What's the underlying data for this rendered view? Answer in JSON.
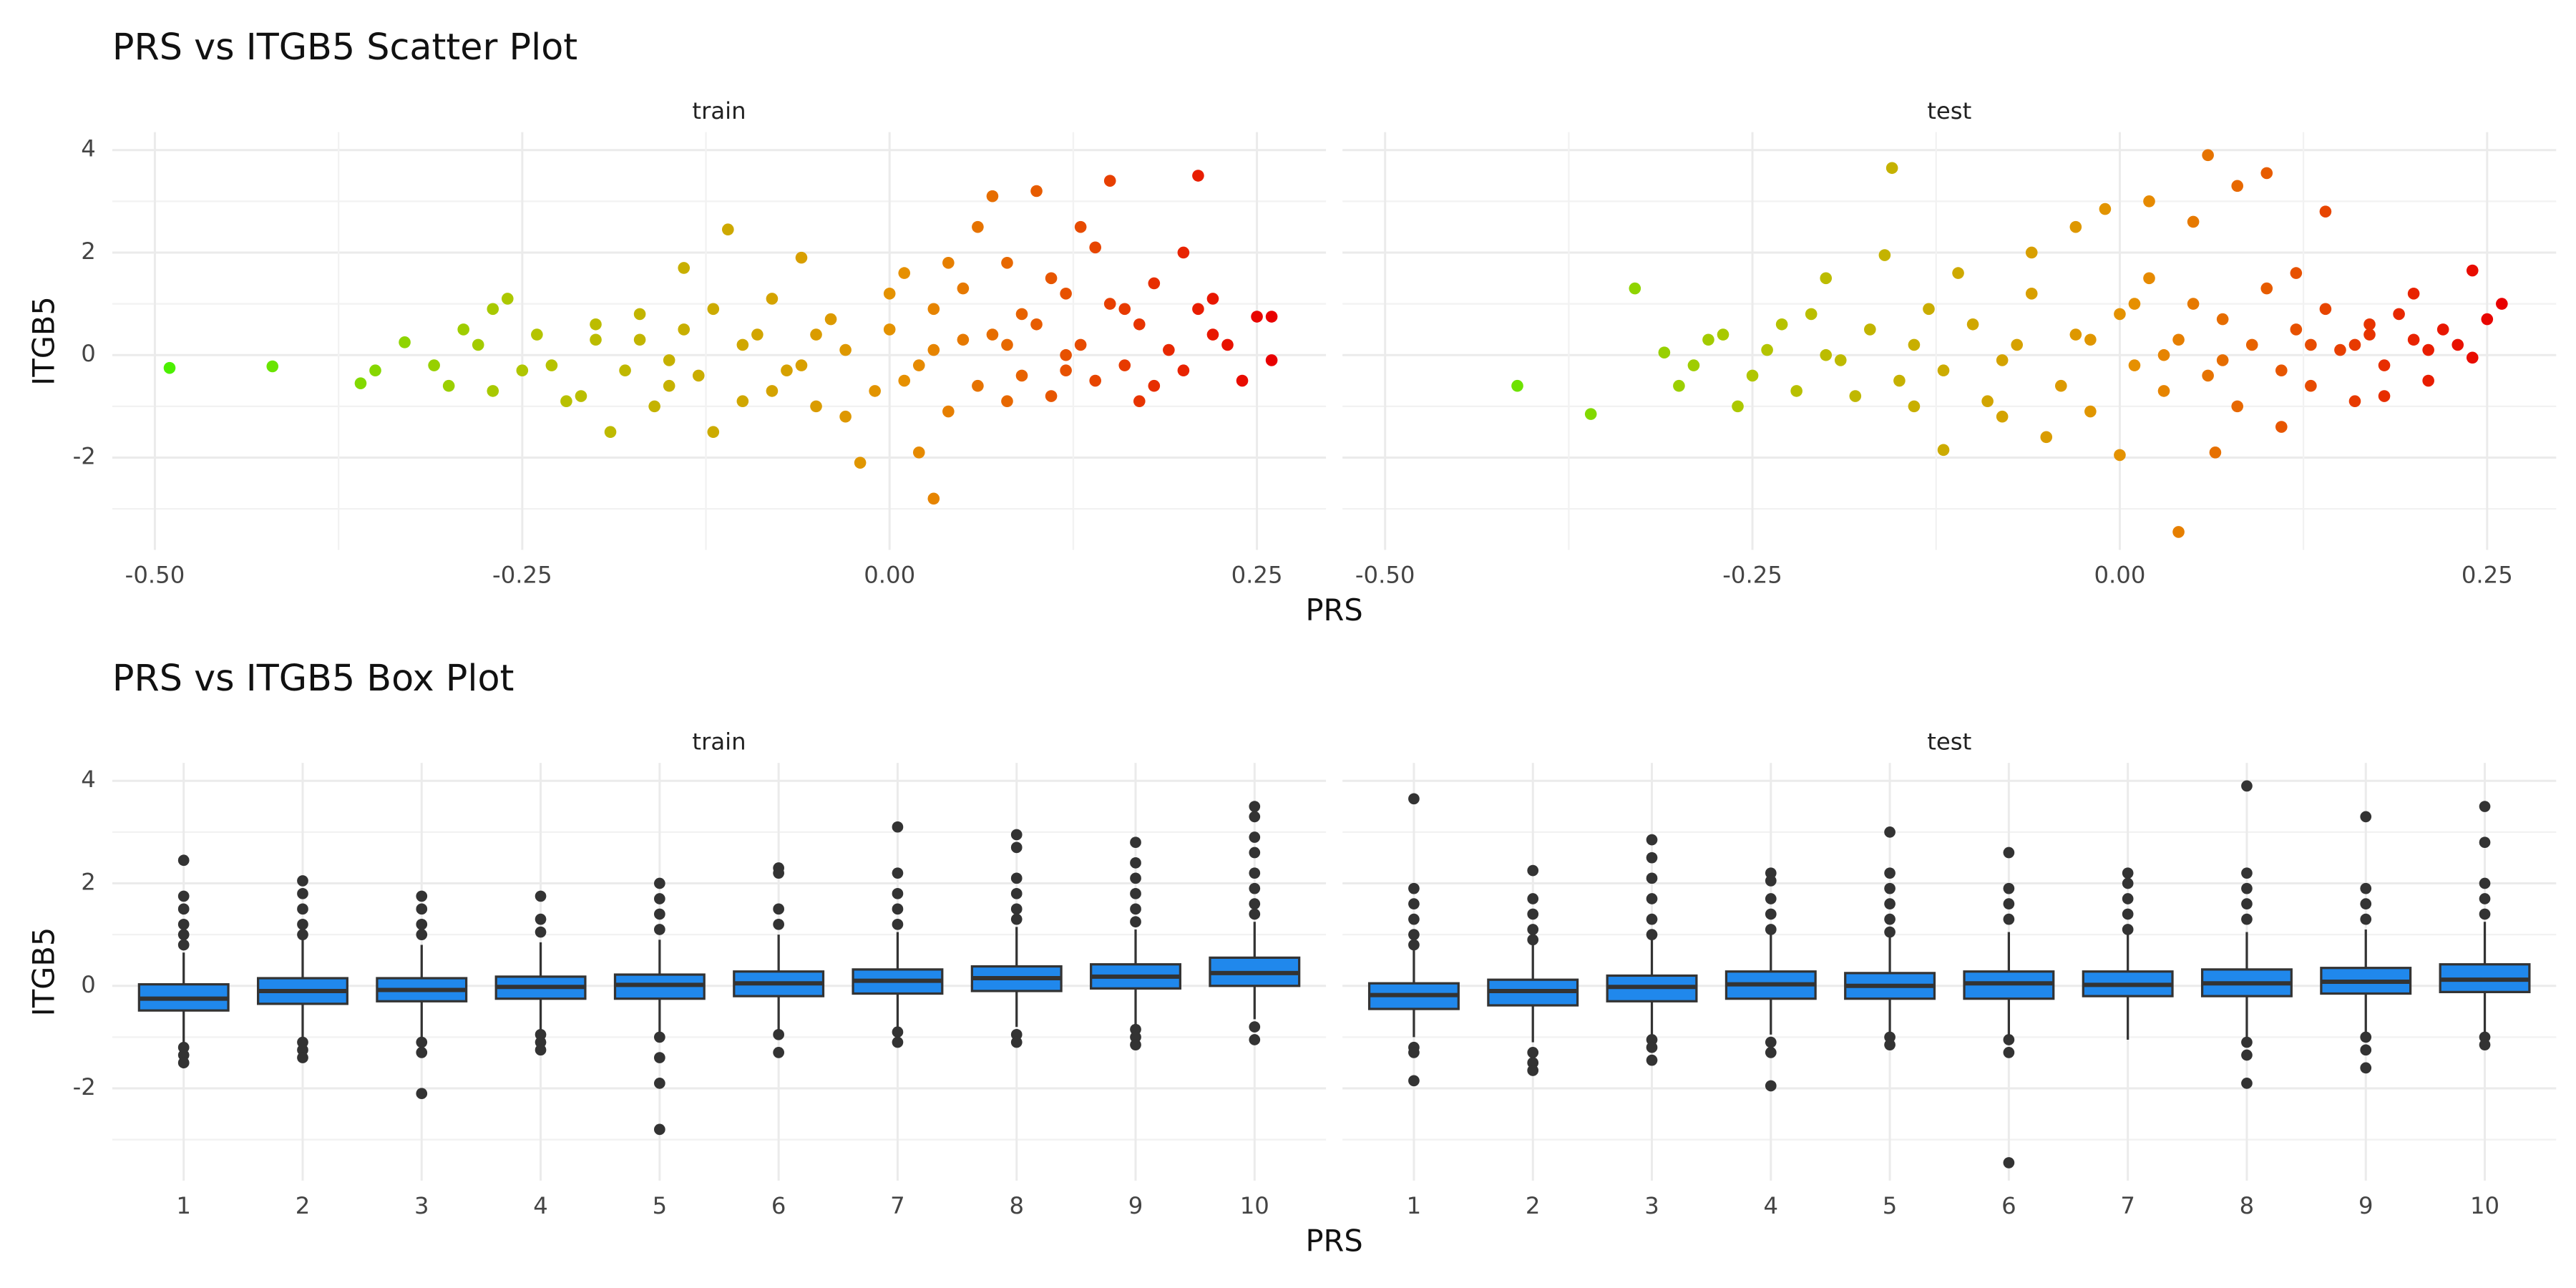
{
  "chart_data": [
    {
      "type": "scatter",
      "title": "PRS vs ITGB5 Scatter Plot",
      "x_label": "PRS",
      "y_label": "ITGB5",
      "xlim": [
        -0.529,
        0.297
      ],
      "xticks": [
        {
          "value": -0.5,
          "label": "-0.50"
        },
        {
          "value": -0.25,
          "label": "-0.25"
        },
        {
          "value": 0,
          "label": "0.00"
        },
        {
          "value": 0.25,
          "label": "0.25"
        }
      ],
      "ylim": [
        -3.8,
        4.35
      ],
      "yticks": [
        -2,
        0,
        2,
        4
      ],
      "grid": true,
      "color_scale": [
        "#4cf000",
        "#b4c400",
        "#e69000",
        "#e80000"
      ],
      "facets": [
        {
          "name": "train",
          "x": [
            -0.49,
            -0.42,
            -0.36,
            -0.35,
            -0.33,
            -0.3,
            -0.29,
            -0.27,
            -0.26,
            -0.25,
            -0.22,
            -0.2,
            -0.19,
            -0.17,
            -0.15,
            -0.14,
            -0.12,
            -0.11,
            -0.1,
            -0.08,
            -0.06,
            -0.05,
            -0.03,
            -0.02,
            0.0,
            0.01,
            0.02,
            0.03,
            0.04,
            0.05,
            0.06,
            0.07,
            0.08,
            0.09,
            0.1,
            0.11,
            0.12,
            0.13,
            0.15,
            0.16,
            0.18,
            0.2,
            0.21,
            0.22,
            0.24,
            0.25,
            0.26,
            0.26,
            -0.31,
            -0.28,
            -0.27,
            -0.24,
            -0.23,
            -0.21,
            -0.2,
            -0.18,
            -0.17,
            -0.16,
            -0.14,
            -0.13,
            -0.12,
            -0.1,
            -0.09,
            -0.08,
            -0.07,
            -0.05,
            -0.04,
            -0.03,
            -0.01,
            0.0,
            0.01,
            0.02,
            0.03,
            0.04,
            0.05,
            0.06,
            0.07,
            0.08,
            0.09,
            0.1,
            0.11,
            0.12,
            0.13,
            0.14,
            0.15,
            0.16,
            0.17,
            0.18,
            0.19,
            0.2,
            0.21,
            0.22,
            0.23,
            -0.15,
            -0.06,
            0.03,
            0.08,
            0.12,
            0.14,
            0.17
          ],
          "y": [
            -0.25,
            -0.22,
            -0.55,
            -0.3,
            0.25,
            -0.6,
            0.5,
            0.9,
            1.1,
            -0.3,
            -0.9,
            0.3,
            -1.5,
            0.8,
            -0.6,
            1.7,
            -1.5,
            2.45,
            0.2,
            -0.7,
            1.9,
            0.4,
            -1.2,
            -2.1,
            1.2,
            -0.5,
            -1.9,
            -2.8,
            1.8,
            0.3,
            2.5,
            3.1,
            -0.9,
            0.8,
            3.2,
            1.5,
            -0.3,
            2.5,
            3.4,
            0.9,
            -0.6,
            2.0,
            3.5,
            0.4,
            -0.5,
            0.75,
            0.75,
            -0.1,
            -0.2,
            0.2,
            -0.7,
            0.4,
            -0.2,
            -0.8,
            0.6,
            -0.3,
            0.3,
            -1.0,
            0.5,
            -0.4,
            0.9,
            -0.9,
            0.4,
            1.1,
            -0.3,
            -1.0,
            0.7,
            0.1,
            -0.7,
            0.5,
            1.6,
            -0.2,
            0.9,
            -1.1,
            1.3,
            -0.6,
            0.4,
            1.8,
            -0.4,
            0.6,
            -0.8,
            1.2,
            0.2,
            -0.5,
            1.0,
            -0.2,
            0.6,
            1.4,
            0.1,
            -0.3,
            0.9,
            1.1,
            0.2,
            -0.1,
            -0.2,
            0.1,
            0.2,
            0.0,
            2.1,
            -0.9
          ]
        },
        {
          "name": "test",
          "x": [
            -0.41,
            -0.36,
            -0.33,
            -0.31,
            -0.3,
            -0.28,
            -0.26,
            -0.23,
            -0.2,
            -0.18,
            -0.16,
            -0.155,
            -0.14,
            -0.12,
            -0.11,
            -0.08,
            -0.06,
            -0.05,
            -0.03,
            -0.01,
            0.0,
            0.01,
            0.02,
            0.04,
            0.05,
            0.06,
            0.065,
            0.08,
            0.1,
            0.11,
            0.12,
            0.14,
            0.16,
            0.18,
            0.2,
            0.22,
            0.24,
            0.24,
            0.25,
            0.26,
            -0.29,
            -0.27,
            -0.25,
            -0.24,
            -0.22,
            -0.21,
            -0.19,
            -0.17,
            -0.15,
            -0.13,
            -0.12,
            -0.1,
            -0.09,
            -0.07,
            -0.06,
            -0.04,
            -0.03,
            -0.02,
            0.0,
            0.01,
            0.02,
            0.03,
            0.04,
            0.05,
            0.06,
            0.07,
            0.08,
            0.09,
            0.1,
            0.11,
            0.12,
            0.13,
            0.14,
            0.15,
            0.16,
            0.17,
            0.18,
            0.19,
            0.2,
            0.21,
            -0.2,
            -0.14,
            -0.08,
            -0.02,
            0.03,
            0.07,
            0.13,
            0.17,
            0.21,
            0.23
          ],
          "y": [
            -0.6,
            -1.15,
            1.3,
            0.05,
            -0.6,
            0.3,
            -1.0,
            0.6,
            1.5,
            -0.8,
            1.95,
            3.65,
            -1.0,
            -1.85,
            1.6,
            -1.2,
            2.0,
            -1.6,
            2.5,
            2.85,
            -1.95,
            1.0,
            3.0,
            -3.45,
            2.6,
            3.9,
            -1.9,
            3.3,
            3.55,
            -1.4,
            1.6,
            2.8,
            0.2,
            -0.8,
            1.2,
            0.5,
            1.65,
            -0.05,
            0.7,
            1.0,
            -0.2,
            0.4,
            -0.4,
            0.1,
            -0.7,
            0.8,
            -0.1,
            0.5,
            -0.5,
            0.9,
            -0.3,
            0.6,
            -0.9,
            0.2,
            1.2,
            -0.6,
            0.4,
            -1.1,
            0.8,
            -0.2,
            1.5,
            -0.7,
            0.3,
            1.0,
            -0.4,
            0.7,
            -1.0,
            0.2,
            1.3,
            -0.3,
            0.5,
            -0.6,
            0.9,
            0.1,
            -0.9,
            0.6,
            -0.2,
            0.8,
            0.3,
            -0.5,
            0.0,
            0.2,
            -0.1,
            0.3,
            0.0,
            -0.1,
            0.2,
            0.4,
            0.1,
            0.2
          ]
        }
      ]
    },
    {
      "type": "box",
      "title": "PRS vs ITGB5 Box Plot",
      "x_label": "PRS",
      "y_label": "ITGB5",
      "categories": [
        "1",
        "2",
        "3",
        "4",
        "5",
        "6",
        "7",
        "8",
        "9",
        "10"
      ],
      "ylim": [
        -3.8,
        4.35
      ],
      "yticks": [
        -2,
        0,
        2,
        4
      ],
      "grid": true,
      "color": "#2088ec",
      "facets": [
        {
          "name": "train",
          "lower": [
            -1.1,
            -1.0,
            -1.0,
            -0.85,
            -0.9,
            -0.85,
            -0.8,
            -0.8,
            -0.75,
            -0.65
          ],
          "q1": [
            -0.48,
            -0.35,
            -0.3,
            -0.25,
            -0.25,
            -0.2,
            -0.15,
            -0.1,
            -0.05,
            0.0
          ],
          "median": [
            -0.25,
            -0.1,
            -0.08,
            -0.02,
            0.02,
            0.05,
            0.1,
            0.15,
            0.18,
            0.25
          ],
          "q3": [
            0.03,
            0.15,
            0.15,
            0.18,
            0.22,
            0.28,
            0.32,
            0.38,
            0.42,
            0.55
          ],
          "upper": [
            0.65,
            0.9,
            0.8,
            0.85,
            0.9,
            1.0,
            1.05,
            1.15,
            1.1,
            1.25
          ],
          "outliers": [
            [
              2.45,
              1.75,
              1.5,
              1.2,
              1.0,
              0.8,
              -1.2,
              -1.35,
              -1.5
            ],
            [
              2.05,
              1.8,
              1.5,
              1.2,
              1.0,
              -1.1,
              -1.25,
              -1.4
            ],
            [
              1.75,
              1.5,
              1.2,
              1.0,
              -1.1,
              -1.3,
              -2.1
            ],
            [
              1.75,
              1.3,
              1.05,
              -0.95,
              -1.1,
              -1.25
            ],
            [
              2.0,
              1.7,
              1.4,
              1.1,
              -1.0,
              -1.4,
              -1.9,
              -2.8
            ],
            [
              2.3,
              2.2,
              1.5,
              1.2,
              -0.95,
              -1.3
            ],
            [
              3.1,
              2.2,
              1.8,
              1.5,
              1.2,
              -0.9,
              -1.1
            ],
            [
              2.95,
              2.7,
              2.1,
              1.8,
              1.5,
              1.3,
              -0.95,
              -1.1
            ],
            [
              2.8,
              2.4,
              2.1,
              1.8,
              1.5,
              1.25,
              -0.85,
              -1.0,
              -1.15
            ],
            [
              3.5,
              3.3,
              2.9,
              2.6,
              2.2,
              1.9,
              1.6,
              1.4,
              -0.8,
              -1.05
            ]
          ]
        },
        {
          "name": "test",
          "lower": [
            -1.0,
            -1.1,
            -0.95,
            -0.95,
            -0.95,
            -0.95,
            -1.05,
            -1.0,
            -0.9,
            -0.9
          ],
          "q1": [
            -0.45,
            -0.38,
            -0.3,
            -0.25,
            -0.25,
            -0.25,
            -0.2,
            -0.2,
            -0.15,
            -0.12
          ],
          "median": [
            -0.18,
            -0.1,
            -0.02,
            0.03,
            0.0,
            0.05,
            0.02,
            0.05,
            0.08,
            0.12
          ],
          "q3": [
            0.05,
            0.12,
            0.2,
            0.28,
            0.25,
            0.28,
            0.28,
            0.32,
            0.35,
            0.42
          ],
          "upper": [
            0.7,
            0.8,
            0.9,
            1.0,
            0.95,
            1.05,
            1.0,
            1.05,
            1.1,
            1.25
          ],
          "outliers": [
            [
              3.65,
              1.9,
              1.6,
              1.3,
              1.0,
              0.8,
              -1.2,
              -1.3,
              -1.85
            ],
            [
              2.25,
              1.7,
              1.4,
              1.1,
              0.9,
              -1.3,
              -1.5,
              -1.65
            ],
            [
              2.85,
              2.5,
              2.1,
              1.7,
              1.3,
              1.0,
              -1.05,
              -1.2,
              -1.45
            ],
            [
              2.2,
              2.05,
              1.7,
              1.4,
              1.1,
              -1.1,
              -1.3,
              -1.95
            ],
            [
              3.0,
              2.2,
              1.9,
              1.6,
              1.3,
              1.05,
              -1.0,
              -1.15
            ],
            [
              2.6,
              1.9,
              1.6,
              1.3,
              -1.05,
              -1.3,
              -3.45
            ],
            [
              2.2,
              2.0,
              1.7,
              1.4,
              1.1
            ],
            [
              3.9,
              2.2,
              1.9,
              1.6,
              1.3,
              -1.1,
              -1.35,
              -1.9
            ],
            [
              3.3,
              1.9,
              1.6,
              1.3,
              -1.0,
              -1.25,
              -1.6
            ],
            [
              3.5,
              2.8,
              2.0,
              1.7,
              1.4,
              -1.0,
              -1.15
            ]
          ]
        }
      ]
    }
  ]
}
